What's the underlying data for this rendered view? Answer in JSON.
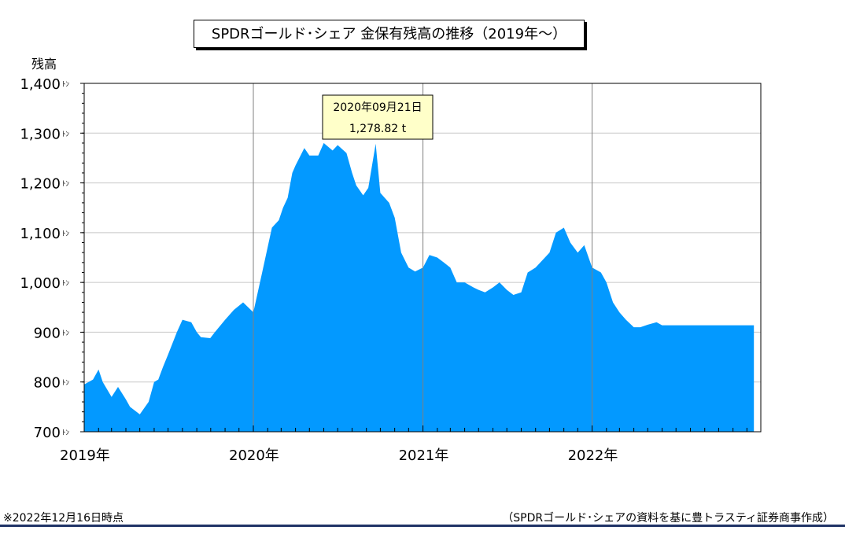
{
  "title": "SPDRゴールド･シェア 金保有残高の推移（2019年～）",
  "y_axis_label": "残高",
  "y_unit_mark": "ﾄﾝ",
  "footer": {
    "note": "※2022年12月16日時点",
    "source": "（SPDRゴールド･シェアの資料を基に豊トラスティ証券商事作成）"
  },
  "tooltip": {
    "date": "2020年09月21日",
    "value": "1,278.82 t"
  },
  "colors": {
    "area": "#0399ff",
    "tooltip_bg": "#ffffc9",
    "grid": "#c8c8c8",
    "year_line": "#808080",
    "footer_rule": "#1f3366"
  },
  "chart_data": {
    "type": "area",
    "title": "SPDRゴールド･シェア 金保有残高の推移（2019年～）",
    "ylabel": "残高",
    "ylim": [
      700,
      1400
    ],
    "yticks": [
      700,
      800,
      900,
      1000,
      1100,
      1200,
      1300,
      1400
    ],
    "ytick_labels": [
      "700",
      "800",
      "900",
      "1,000",
      "1,100",
      "1,200",
      "1,300",
      "1,400"
    ],
    "xlim": [
      "2019-01-01",
      "2022-12-31"
    ],
    "xticks": [
      "2019-01-01",
      "2020-01-01",
      "2021-01-01",
      "2022-01-01"
    ],
    "xtick_labels": [
      "2019年",
      "2020年",
      "2021年",
      "2022年"
    ],
    "grid": true,
    "series": [
      {
        "x": [
          "2019-01-01",
          "2019-01-20",
          "2019-02-01",
          "2019-02-10",
          "2019-03-01",
          "2019-03-15",
          "2019-04-01",
          "2019-04-10",
          "2019-05-01",
          "2019-05-20",
          "2019-06-01",
          "2019-06-10",
          "2019-06-20",
          "2019-07-01",
          "2019-07-20",
          "2019-08-01",
          "2019-08-20",
          "2019-09-01",
          "2019-09-10",
          "2019-09-30",
          "2019-10-10",
          "2019-11-01",
          "2019-11-20",
          "2019-12-10",
          "2020-01-01",
          "2020-01-20",
          "2020-02-10",
          "2020-02-25",
          "2020-03-05",
          "2020-03-15",
          "2020-03-25",
          "2020-04-01",
          "2020-04-20",
          "2020-05-01",
          "2020-05-20",
          "2020-06-01",
          "2020-06-20",
          "2020-07-01",
          "2020-07-20",
          "2020-08-01",
          "2020-08-10",
          "2020-08-25",
          "2020-09-05",
          "2020-09-21",
          "2020-10-01",
          "2020-10-20",
          "2020-11-01",
          "2020-11-15",
          "2020-12-01",
          "2020-12-15",
          "2021-01-01",
          "2021-01-15",
          "2021-02-01",
          "2021-02-15",
          "2021-03-01",
          "2021-03-15",
          "2021-04-01",
          "2021-04-20",
          "2021-05-01",
          "2021-05-15",
          "2021-06-01",
          "2021-06-15",
          "2021-07-01",
          "2021-07-15",
          "2021-08-01",
          "2021-08-15",
          "2021-09-01",
          "2021-10-01",
          "2021-10-15",
          "2021-11-01",
          "2021-11-15",
          "2021-12-01",
          "2021-12-15",
          "2022-01-01",
          "2022-01-20",
          "2022-02-01",
          "2022-02-15",
          "2022-03-01",
          "2022-03-15",
          "2022-04-01",
          "2022-04-15",
          "2022-05-01",
          "2022-05-20",
          "2022-06-01",
          "2022-06-15",
          "2022-07-01",
          "2022-07-20",
          "2022-08-01",
          "2022-08-20",
          "2022-09-01",
          "2022-09-20",
          "2022-10-01",
          "2022-10-20",
          "2022-11-01",
          "2022-11-20",
          "2022-12-01",
          "2022-12-10",
          "2022-12-16"
        ],
        "values": [
          795,
          805,
          825,
          800,
          770,
          790,
          765,
          750,
          735,
          760,
          800,
          805,
          830,
          855,
          900,
          925,
          920,
          900,
          890,
          888,
          900,
          925,
          945,
          960,
          940,
          1020,
          1110,
          1125,
          1150,
          1170,
          1220,
          1235,
          1270,
          1255,
          1255,
          1280,
          1265,
          1276,
          1260,
          1220,
          1195,
          1175,
          1190,
          1278.82,
          1180,
          1160,
          1130,
          1060,
          1030,
          1022,
          1030,
          1055,
          1050,
          1040,
          1030,
          1000,
          1000,
          990,
          985,
          980,
          990,
          1000,
          985,
          975,
          980,
          1020,
          1030,
          1060,
          1100,
          1110,
          1080,
          1060,
          1075,
          1030,
          1020,
          1000,
          960,
          940,
          925,
          910,
          910,
          915,
          920,
          914,
          914,
          914,
          914,
          914,
          914,
          914,
          914,
          914,
          914,
          914,
          914,
          914,
          914,
          914
        ]
      }
    ]
  }
}
